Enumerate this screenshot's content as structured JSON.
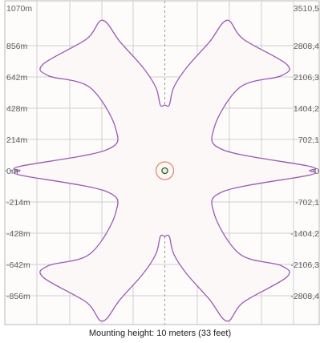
{
  "caption": "Mounting height: 10 meters (33 feet)",
  "colors": {
    "background": "#ffffff",
    "plot_fill": "#fdfcfb",
    "grid": "#d0d0d0",
    "frame": "#b8b8b8",
    "axis_dash": "#9a9a9a",
    "light_shape": "#9c58b6",
    "luminaire_ring": "#e8826c",
    "luminaire_core": "#3c6b2c"
  },
  "chart_data": {
    "type": "area",
    "title": "",
    "xlabel": "",
    "ylabel": "",
    "grid": true,
    "ylim": [
      -1070,
      1070
    ],
    "left_axis_ticks": [
      "1070m",
      "856m",
      "642m",
      "428m",
      "214m",
      "0m",
      "-214m",
      "-428m",
      "-642m",
      "-856m"
    ],
    "right_axis_ticks": [
      "3510,5",
      "2808,4",
      "2106,3",
      "1404,2",
      "702,1",
      "0",
      "-702,1",
      "-1404,2",
      "-2106,3",
      "-2808,4"
    ],
    "luminaire_marker": {
      "x": 0,
      "y": 0,
      "icon": "luminaire-icon"
    },
    "shape_outline_quadrant": [
      [
        0,
        450
      ],
      [
        -30,
        450
      ],
      [
        -60,
        570
      ],
      [
        -150,
        710
      ],
      [
        -300,
        880
      ],
      [
        -420,
        1030
      ],
      [
        -530,
        900
      ],
      [
        -820,
        730
      ],
      [
        -785,
        650
      ],
      [
        -505,
        570
      ],
      [
        -330,
        285
      ],
      [
        -400,
        140
      ],
      [
        -975,
        30
      ],
      [
        -975,
        0
      ]
    ]
  }
}
